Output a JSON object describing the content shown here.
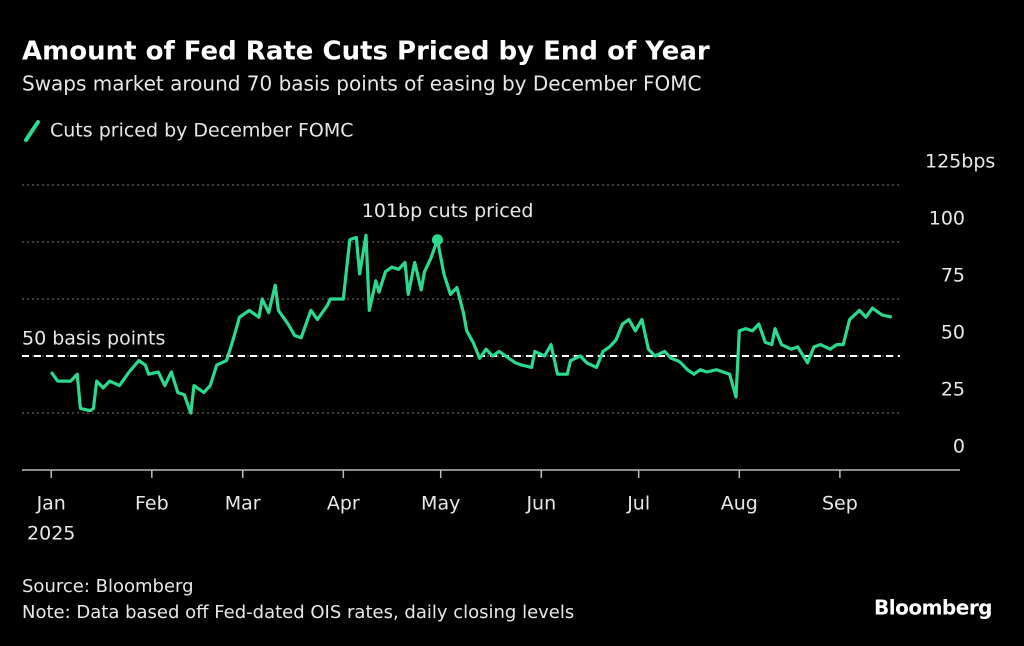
{
  "chart_data": {
    "type": "line",
    "title": "Amount of Fed Rate Cuts Priced by End of Year",
    "subtitle": "Swaps market around 70 basis points of easing by December FOMC",
    "source": "Source: Bloomberg",
    "note": "Note: Data based off Fed-dated OIS rates, daily closing levels",
    "brand": "Bloomberg",
    "year_label": "2025",
    "x": [
      0,
      2,
      3,
      6,
      8,
      9,
      12,
      13,
      14,
      16,
      18,
      21,
      24,
      27,
      29,
      30,
      33,
      35,
      37,
      39,
      41,
      43,
      44,
      47,
      49,
      51,
      54,
      56,
      58,
      61,
      64,
      65,
      67,
      69,
      70,
      73,
      75,
      77,
      80,
      82,
      85,
      86,
      90,
      92,
      94,
      95,
      97,
      98,
      100,
      101,
      103,
      105,
      107,
      109,
      110,
      112,
      114,
      115,
      117,
      119,
      121,
      123,
      125,
      127,
      128,
      130,
      132,
      134,
      136,
      138,
      141,
      143,
      145,
      148,
      149,
      152,
      154,
      156,
      159,
      160,
      163,
      165,
      168,
      170,
      172,
      174,
      176,
      178,
      180,
      182,
      184,
      186,
      189,
      191,
      193,
      194,
      196,
      198,
      200,
      202,
      205,
      207,
      209,
      211,
      212,
      214,
      216,
      218,
      220,
      222,
      223,
      225,
      228,
      230,
      233,
      235,
      237,
      240,
      242,
      244,
      246,
      249,
      251,
      253,
      256,
      259
    ],
    "series": [
      {
        "name": "Cuts priced by December FOMC",
        "color": "#2bd98f",
        "values": [
          43,
          39,
          39,
          39,
          42,
          27,
          26,
          27,
          39,
          36,
          39,
          37,
          43,
          48,
          46,
          42,
          43,
          37,
          43,
          34,
          33,
          25,
          37,
          34,
          37,
          46,
          48,
          57,
          67,
          70,
          67,
          75,
          69,
          81,
          70,
          64,
          59,
          58,
          70,
          66,
          72,
          75,
          75,
          101,
          102,
          86,
          103,
          70,
          83,
          78,
          87,
          89,
          88,
          91,
          77,
          91,
          79,
          87,
          93,
          101,
          86,
          77,
          80,
          69,
          61,
          56,
          49,
          53,
          50,
          52,
          49,
          47,
          46,
          45,
          52,
          50,
          55,
          42,
          42,
          48,
          50,
          47,
          45,
          52,
          54,
          57,
          64,
          66,
          61,
          66,
          53,
          50,
          52,
          49,
          48,
          47,
          44,
          42,
          44,
          43,
          44,
          43,
          42,
          32,
          61,
          62,
          61,
          64,
          56,
          55,
          62,
          55,
          53,
          54,
          47,
          54,
          55,
          53,
          55,
          55,
          66,
          70,
          67,
          71,
          68,
          67
        ]
      }
    ],
    "xlim": [
      -9,
      280
    ],
    "xticks": [
      {
        "value": 0,
        "label": "Jan"
      },
      {
        "value": 31,
        "label": "Feb"
      },
      {
        "value": 59,
        "label": "Mar"
      },
      {
        "value": 90,
        "label": "Apr"
      },
      {
        "value": 120,
        "label": "May"
      },
      {
        "value": 151,
        "label": "Jun"
      },
      {
        "value": 181,
        "label": "Jul"
      },
      {
        "value": 212,
        "label": "Aug"
      },
      {
        "value": 243,
        "label": "Sep"
      }
    ],
    "ylim": [
      0,
      125
    ],
    "yticks": [
      0,
      25,
      50,
      75,
      100,
      {
        "value": 125,
        "label": "125bps"
      }
    ],
    "grid": true,
    "annotations": [
      {
        "text": "101bp cuts priced",
        "x": 119,
        "y": 101
      }
    ],
    "reference_line": {
      "text": "50 basis points",
      "y": 50
    }
  }
}
